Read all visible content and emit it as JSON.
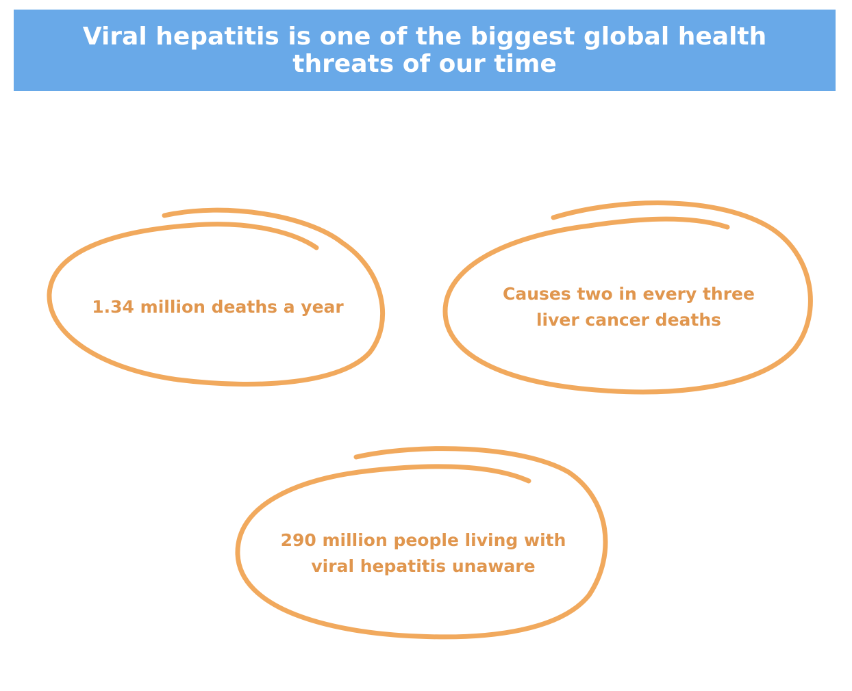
{
  "header": {
    "title": "Viral hepatitis is one of the biggest global health threats of our time"
  },
  "items": [
    {
      "text": "1.34 million deaths a year"
    },
    {
      "text": "Causes two in every three liver cancer deaths"
    },
    {
      "text": "290 million people living with viral hepatitis unaware"
    }
  ]
}
